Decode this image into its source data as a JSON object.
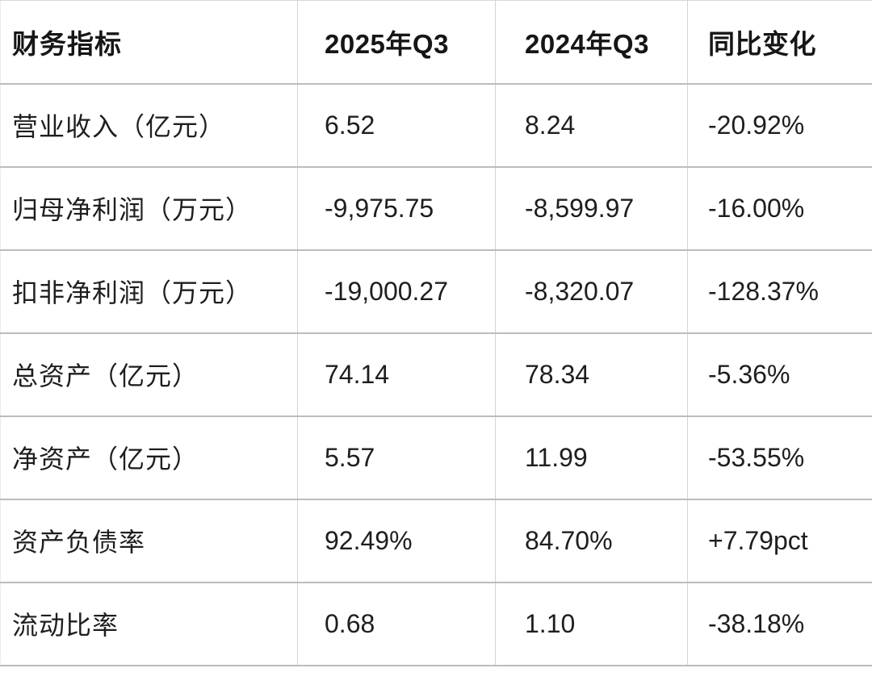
{
  "chart_data": {
    "type": "table",
    "columns": [
      "财务指标",
      "2025年Q3",
      "2024年Q3",
      "同比变化"
    ],
    "rows": [
      [
        "营业收入（亿元）",
        "6.52",
        "8.24",
        "-20.92%"
      ],
      [
        "归母净利润（万元）",
        "-9,975.75",
        "-8,599.97",
        "-16.00%"
      ],
      [
        "扣非净利润（万元）",
        "-19,000.27",
        "-8,320.07",
        "-128.37%"
      ],
      [
        "总资产（亿元）",
        "74.14",
        "78.34",
        "-5.36%"
      ],
      [
        "净资产（亿元）",
        "5.57",
        "11.99",
        "-53.55%"
      ],
      [
        "资产负债率",
        "92.49%",
        "84.70%",
        "+7.79pct"
      ],
      [
        "流动比率",
        "0.68",
        "1.10",
        "-38.18%"
      ]
    ],
    "layout": {
      "header_bold": true,
      "grid": "full",
      "align": "left"
    }
  },
  "colors": {
    "background": "#ffffff",
    "text": "#1a1a1a",
    "horizontal_rule": "#bcbcbc",
    "vertical_rule": "#d4d4d4"
  }
}
